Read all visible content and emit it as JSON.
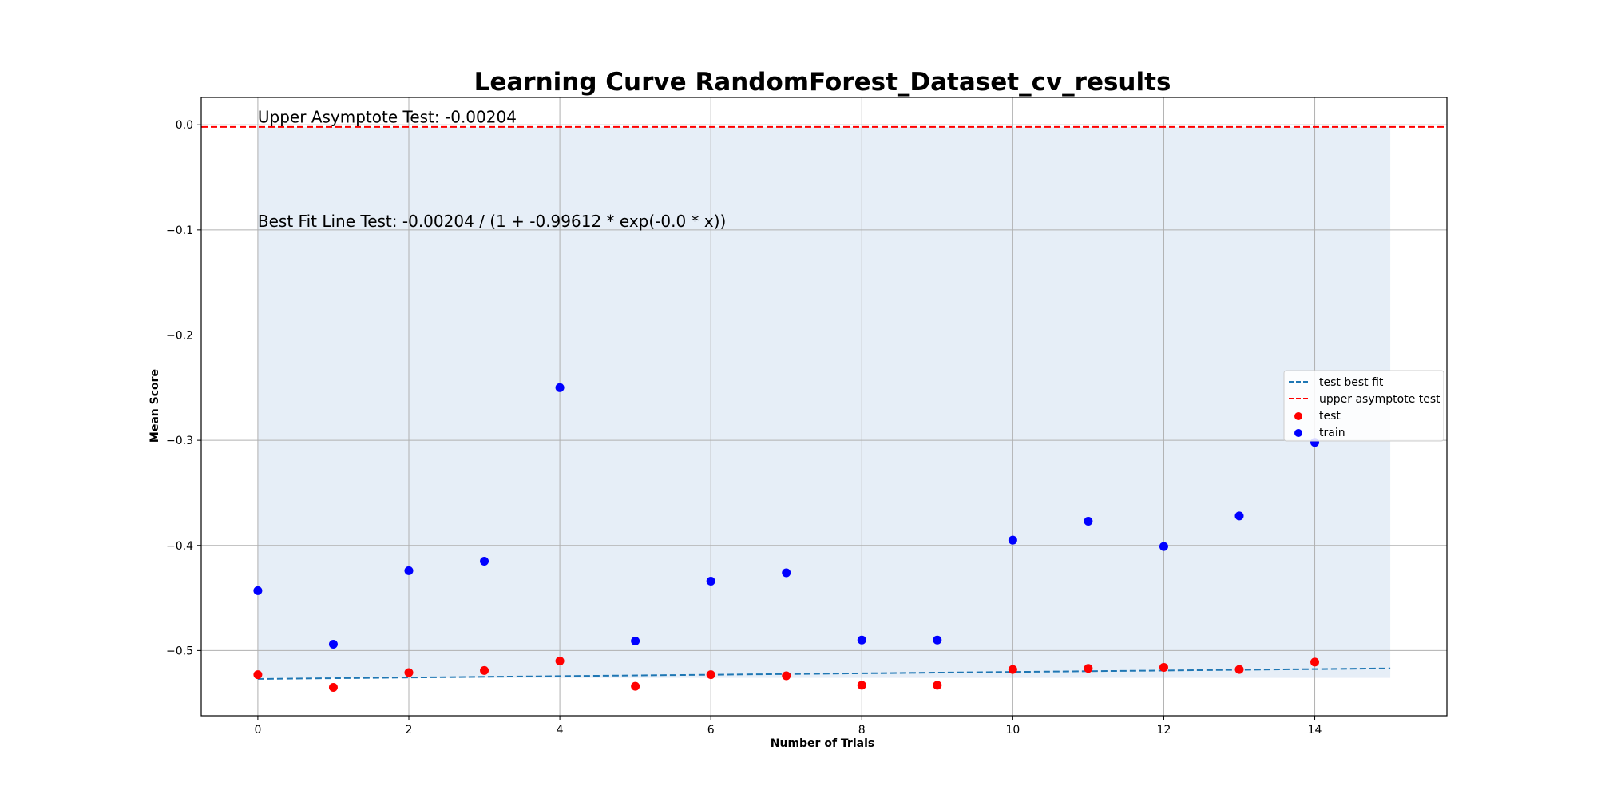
{
  "chart_data": {
    "type": "scatter",
    "title": "Learning Curve RandomForest_Dataset_cv_results",
    "xlabel": "Number of Trials",
    "ylabel": "Mean Score",
    "xlim": [
      -0.75,
      15.75
    ],
    "ylim": [
      -0.562,
      0.026
    ],
    "xticks": [
      0,
      2,
      4,
      6,
      8,
      10,
      12,
      14
    ],
    "yticks": [
      0.0,
      -0.1,
      -0.2,
      -0.3,
      -0.4,
      -0.5
    ],
    "ytick_labels": [
      "0.0",
      "−0.1",
      "−0.2",
      "−0.3",
      "−0.4",
      "−0.5"
    ],
    "grid": true,
    "legend_position": "center-right",
    "annotations": [
      {
        "text": "Upper Asymptote Test: -0.00204",
        "x": 0,
        "y": 0.002
      },
      {
        "text": "Best Fit Line Test: -0.00204 / (1 + -0.99612 * exp(-0.0 * x))",
        "x": 0,
        "y": -0.097
      }
    ],
    "shaded_region": {
      "x": [
        0,
        15
      ],
      "y_low": -0.526,
      "y_high": -0.00204,
      "color": "#e6eef7"
    },
    "series": [
      {
        "name": "test best fit",
        "kind": "line",
        "style": "dashed",
        "color": "#1f77b4",
        "x": [
          0,
          15
        ],
        "y": [
          -0.527,
          -0.517
        ]
      },
      {
        "name": "upper asymptote test",
        "kind": "hline",
        "style": "dashed",
        "color": "#ff0000",
        "y": -0.00204
      },
      {
        "name": "test",
        "kind": "scatter",
        "color": "#ff0000",
        "x": [
          0,
          1,
          2,
          3,
          4,
          5,
          6,
          7,
          8,
          9,
          10,
          11,
          12,
          13,
          14
        ],
        "y": [
          -0.523,
          -0.535,
          -0.521,
          -0.519,
          -0.51,
          -0.534,
          -0.523,
          -0.524,
          -0.533,
          -0.533,
          -0.518,
          -0.517,
          -0.516,
          -0.518,
          -0.511
        ]
      },
      {
        "name": "train",
        "kind": "scatter",
        "color": "#0000ff",
        "x": [
          0,
          1,
          2,
          3,
          4,
          5,
          6,
          7,
          8,
          9,
          10,
          11,
          12,
          13,
          14
        ],
        "y": [
          -0.443,
          -0.494,
          -0.424,
          -0.415,
          -0.25,
          -0.491,
          -0.434,
          -0.426,
          -0.49,
          -0.49,
          -0.395,
          -0.377,
          -0.401,
          -0.372,
          -0.302
        ]
      }
    ]
  }
}
